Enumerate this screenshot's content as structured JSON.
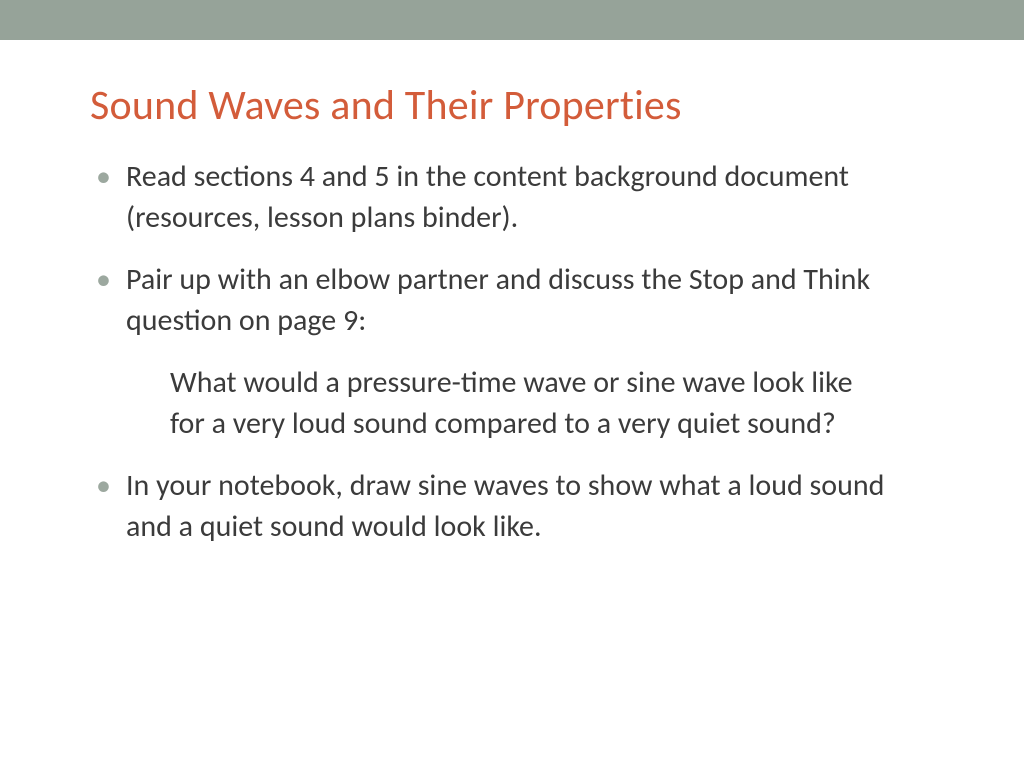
{
  "colors": {
    "top_bar": "#96a399",
    "title": "#d35c3a",
    "body_text": "#3b3b3b",
    "bullet": "#9ca89f",
    "background": "#ffffff"
  },
  "typography": {
    "title_fontsize": 42,
    "body_fontsize": 30,
    "font_family": "Calibri"
  },
  "title": "Sound Waves and Their Properties",
  "bullets": [
    "Read sections 4 and 5 in the content background document (resources, lesson plans binder).",
    "Pair up with an elbow partner and discuss the Stop and Think question on page 9:",
    "In your notebook, draw sine waves to show what a loud sound and a quiet sound would look like."
  ],
  "sub_text": "What would a pressure-time wave or sine wave look like for a very loud sound compared to a very quiet sound?"
}
